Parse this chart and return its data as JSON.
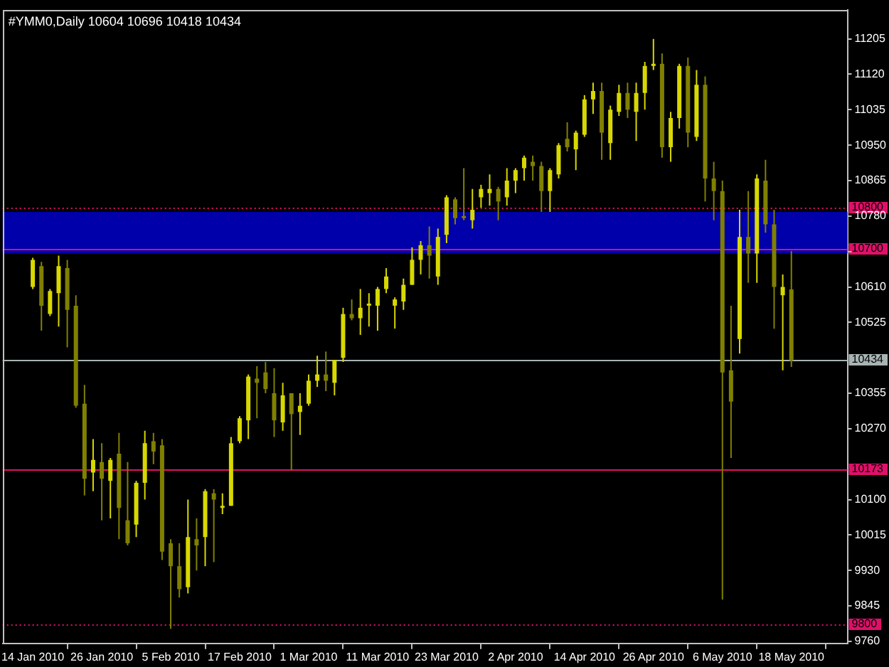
{
  "chart_data": {
    "type": "candlestick",
    "title": "#YMM0,Daily 10604 10696 10418 10434",
    "categories": [
      "14 Jan 2010",
      null,
      null,
      null,
      null,
      null,
      null,
      null,
      "26 Jan 2010",
      null,
      null,
      null,
      null,
      null,
      null,
      null,
      "5 Feb 2010",
      null,
      null,
      null,
      null,
      null,
      null,
      null,
      "17 Feb 2010",
      null,
      null,
      null,
      null,
      null,
      null,
      null,
      "1 Mar 2010",
      null,
      null,
      null,
      null,
      null,
      null,
      null,
      "11 Mar 2010",
      null,
      null,
      null,
      null,
      null,
      null,
      null,
      "23 Mar 2010",
      null,
      null,
      null,
      null,
      null,
      null,
      null,
      "2 Apr 2010",
      null,
      null,
      null,
      null,
      null,
      null,
      null,
      "14 Apr 2010",
      null,
      null,
      null,
      null,
      null,
      null,
      null,
      "26 Apr 2010",
      null,
      null,
      null,
      null,
      null,
      null,
      null,
      "6 May 2010",
      null,
      null,
      null,
      null,
      null,
      null,
      null,
      "18 May 2010"
    ],
    "ohlc": [
      [
        10610,
        10680,
        10605,
        10675
      ],
      [
        10660,
        10670,
        10505,
        10565
      ],
      [
        10545,
        10605,
        10540,
        10600
      ],
      [
        10595,
        10685,
        10515,
        10660
      ],
      [
        10655,
        10675,
        10465,
        10555
      ],
      [
        10565,
        10590,
        10320,
        10325
      ],
      [
        10330,
        10375,
        10110,
        10150
      ],
      [
        10165,
        10245,
        10120,
        10195
      ],
      [
        10190,
        10235,
        10050,
        10150
      ],
      [
        10145,
        10200,
        10055,
        10195
      ],
      [
        10210,
        10260,
        10005,
        10080
      ],
      [
        10050,
        10190,
        9990,
        9995
      ],
      [
        10040,
        10145,
        10010,
        10140
      ],
      [
        10140,
        10265,
        10100,
        10235
      ],
      [
        10240,
        10260,
        10185,
        10215
      ],
      [
        10230,
        10245,
        9955,
        9975
      ],
      [
        9995,
        10005,
        9790,
        9940
      ],
      [
        9940,
        9995,
        9865,
        9885
      ],
      [
        9890,
        10100,
        9875,
        10010
      ],
      [
        10005,
        10055,
        9930,
        9990
      ],
      [
        10010,
        10125,
        9940,
        10120
      ],
      [
        10115,
        10125,
        9950,
        10100
      ],
      [
        10080,
        10115,
        10065,
        10085
      ],
      [
        10085,
        10250,
        10085,
        10235
      ],
      [
        10240,
        10300,
        10235,
        10295
      ],
      [
        10290,
        10400,
        10245,
        10395
      ],
      [
        10390,
        10420,
        10295,
        10380
      ],
      [
        10405,
        10430,
        10355,
        10365
      ],
      [
        10355,
        10415,
        10250,
        10290
      ],
      [
        10285,
        10380,
        10265,
        10350
      ],
      [
        10355,
        10355,
        10170,
        10305
      ],
      [
        10310,
        10355,
        10255,
        10325
      ],
      [
        10330,
        10400,
        10325,
        10385
      ],
      [
        10385,
        10445,
        10370,
        10400
      ],
      [
        10400,
        10455,
        10360,
        10385
      ],
      [
        10380,
        10435,
        10350,
        10435
      ],
      [
        10440,
        10560,
        10430,
        10545
      ],
      [
        10545,
        10580,
        10530,
        10535
      ],
      [
        10535,
        10605,
        10495,
        10560
      ],
      [
        10565,
        10595,
        10515,
        10570
      ],
      [
        10565,
        10610,
        10505,
        10605
      ],
      [
        10605,
        10655,
        10595,
        10635
      ],
      [
        10565,
        10585,
        10510,
        10580
      ],
      [
        10575,
        10630,
        10555,
        10615
      ],
      [
        10615,
        10705,
        10615,
        10675
      ],
      [
        10675,
        10720,
        10640,
        10710
      ],
      [
        10710,
        10755,
        10630,
        10685
      ],
      [
        10635,
        10750,
        10615,
        10730
      ],
      [
        10735,
        10830,
        10715,
        10825
      ],
      [
        10820,
        10825,
        10760,
        10775
      ],
      [
        10780,
        10895,
        10770,
        10775
      ],
      [
        10770,
        10845,
        10750,
        10795
      ],
      [
        10825,
        10855,
        10800,
        10845
      ],
      [
        10835,
        10880,
        10805,
        10845
      ],
      [
        10845,
        10850,
        10770,
        10815
      ],
      [
        10825,
        10895,
        10805,
        10865
      ],
      [
        10865,
        10895,
        10835,
        10890
      ],
      [
        10895,
        10925,
        10865,
        10920
      ],
      [
        10910,
        10925,
        10865,
        10900
      ],
      [
        10900,
        10910,
        10790,
        10840
      ],
      [
        10840,
        10895,
        10790,
        10890
      ],
      [
        10880,
        10955,
        10870,
        10950
      ],
      [
        10965,
        11005,
        10935,
        10945
      ],
      [
        10940,
        10985,
        10890,
        10980
      ],
      [
        10975,
        11070,
        10970,
        11060
      ],
      [
        11060,
        11100,
        11025,
        11080
      ],
      [
        11080,
        11100,
        10915,
        10980
      ],
      [
        10955,
        11045,
        10915,
        11035
      ],
      [
        11030,
        11095,
        11020,
        11075
      ],
      [
        11075,
        11100,
        11015,
        11035
      ],
      [
        11030,
        11100,
        10960,
        11075
      ],
      [
        11075,
        11150,
        11035,
        11140
      ],
      [
        11140,
        11205,
        11130,
        11145
      ],
      [
        11145,
        11170,
        10920,
        10945
      ],
      [
        10945,
        11030,
        10910,
        11015
      ],
      [
        11015,
        11145,
        10990,
        11140
      ],
      [
        11140,
        11160,
        10945,
        10980
      ],
      [
        10970,
        11130,
        10960,
        11095
      ],
      [
        11095,
        11115,
        10815,
        10870
      ],
      [
        10870,
        10910,
        10770,
        10840
      ],
      [
        10840,
        10865,
        9860,
        10405
      ],
      [
        10410,
        10565,
        10200,
        10335
      ],
      [
        10485,
        10795,
        10450,
        10730
      ],
      [
        10730,
        10840,
        10620,
        10690
      ],
      [
        10690,
        10880,
        10620,
        10870
      ],
      [
        10865,
        10915,
        10740,
        10760
      ],
      [
        10760,
        10795,
        10510,
        10610
      ],
      [
        10590,
        10640,
        10410,
        10610
      ],
      [
        10604,
        10696,
        10418,
        10434
      ]
    ],
    "colors": [
      "#d8d800",
      "#808000",
      "#d8d800",
      "#d8d800",
      "#808000",
      "#808000",
      "#808000",
      "#d8d800",
      "#808000",
      "#d8d800",
      "#808000",
      "#808000",
      "#d8d800",
      "#d8d800",
      "#808000",
      "#808000",
      "#808000",
      "#808000",
      "#d8d800",
      "#808000",
      "#d8d800",
      "#808000",
      "#d8d800",
      "#d8d800",
      "#d8d800",
      "#d8d800",
      "#808000",
      "#808000",
      "#808000",
      "#d8d800",
      "#808000",
      "#d8d800",
      "#d8d800",
      "#d8d800",
      "#808000",
      "#d8d800",
      "#d8d800",
      "#808000",
      "#d8d800",
      "#d8d800",
      "#d8d800",
      "#d8d800",
      "#d8d800",
      "#d8d800",
      "#d8d800",
      "#d8d800",
      "#808000",
      "#d8d800",
      "#d8d800",
      "#808000",
      "#808000",
      "#d8d800",
      "#d8d800",
      "#d8d800",
      "#808000",
      "#d8d800",
      "#d8d800",
      "#d8d800",
      "#808000",
      "#808000",
      "#d8d800",
      "#d8d800",
      "#808000",
      "#d8d800",
      "#d8d800",
      "#d8d800",
      "#808000",
      "#d8d800",
      "#d8d800",
      "#808000",
      "#d8d800",
      "#d8d800",
      "#d8d800",
      "#808000",
      "#d8d800",
      "#d8d800",
      "#808000",
      "#d8d800",
      "#808000",
      "#808000",
      "#808000",
      "#808000",
      "#d8d800",
      "#808000",
      "#d8d800",
      "#808000",
      "#808000",
      "#d8d800",
      "#808000"
    ],
    "ylim": [
      9755,
      11275
    ],
    "yticks": [
      9760,
      9845,
      9930,
      10015,
      10100,
      10270,
      10355,
      10525,
      10610,
      {
        "value": 10695,
        "label": null
      },
      10780,
      10865,
      10950,
      11035,
      11120,
      11205
    ],
    "ref_lines": [
      {
        "axis": "y",
        "value": 10800,
        "label": "10800",
        "color": "#e0106a",
        "line_style": "dotted"
      },
      {
        "axis": "y",
        "value": 10700,
        "label": "10700",
        "color": "#e0106a",
        "line_style": "solid"
      },
      {
        "axis": "y",
        "value": 10434,
        "label": "10434",
        "color": "#a8b4b4",
        "line_style": "solid"
      },
      {
        "axis": "y",
        "value": 10173,
        "label": "10173",
        "color": "#e0106a",
        "line_style": "solid"
      },
      {
        "axis": "y",
        "value": 9800,
        "label": "9800",
        "color": "#e0106a",
        "line_style": "dotted"
      }
    ],
    "bands": [
      {
        "axis": "y",
        "from": 10690,
        "to": 10790,
        "color": "#0000aa"
      }
    ]
  }
}
